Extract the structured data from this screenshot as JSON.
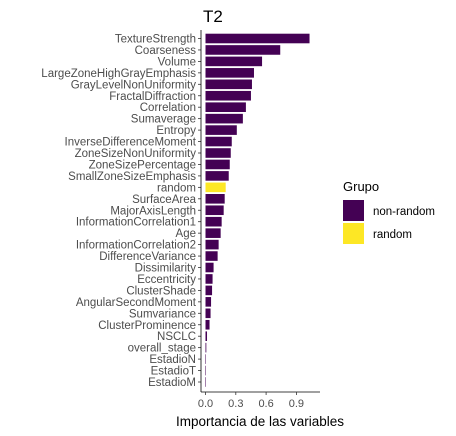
{
  "chart_data": {
    "type": "bar",
    "orientation": "horizontal",
    "title": "T2",
    "xlabel": "Importancia de las variables",
    "ylabel": "",
    "xlim": [
      0,
      1.05
    ],
    "xticks": [
      "0.0",
      "0.3",
      "0.6",
      "0.9"
    ],
    "xtick_values": [
      0.0,
      0.3,
      0.6,
      0.9
    ],
    "grid": false,
    "legend": {
      "title": "Grupo",
      "placement": "right",
      "entries": [
        {
          "name": "non-random",
          "color": "#440154"
        },
        {
          "name": "random",
          "color": "#FDE725"
        }
      ]
    },
    "categories": [
      "TextureStrength",
      "Coarseness",
      "Volume",
      "LargeZoneHighGrayEmphasis",
      "GrayLevelNonUniformity",
      "FractalDiffraction",
      "Correlation",
      "Sumaverage",
      "Entropy",
      "InverseDifferenceMoment",
      "ZoneSizeNonUniformity",
      "ZoneSizePercentage",
      "SmallZoneSizeEmphasis",
      "random",
      "SurfaceArea",
      "MajorAxisLength",
      "InformationCorrelation1",
      "Age",
      "InformationCorrelation2",
      "DifferenceVariance",
      "Dissimilarity",
      "Eccentricity",
      "ClusterShade",
      "AngularSecondMoment",
      "Sumvariance",
      "ClusterProminence",
      "NSCLC",
      "overall_stage",
      "EstadioN",
      "EstadioT",
      "EstadioM"
    ],
    "values": [
      1.03,
      0.74,
      0.56,
      0.48,
      0.46,
      0.45,
      0.4,
      0.37,
      0.31,
      0.26,
      0.25,
      0.24,
      0.23,
      0.2,
      0.19,
      0.18,
      0.16,
      0.15,
      0.13,
      0.12,
      0.08,
      0.07,
      0.065,
      0.055,
      0.05,
      0.04,
      0.015,
      0.008,
      0.004,
      0.001,
      0.0005
    ],
    "groups": [
      "non-random",
      "non-random",
      "non-random",
      "non-random",
      "non-random",
      "non-random",
      "non-random",
      "non-random",
      "non-random",
      "non-random",
      "non-random",
      "non-random",
      "non-random",
      "random",
      "non-random",
      "non-random",
      "non-random",
      "non-random",
      "non-random",
      "non-random",
      "non-random",
      "non-random",
      "non-random",
      "non-random",
      "non-random",
      "non-random",
      "non-random",
      "non-random",
      "non-random",
      "non-random",
      "non-random"
    ]
  }
}
